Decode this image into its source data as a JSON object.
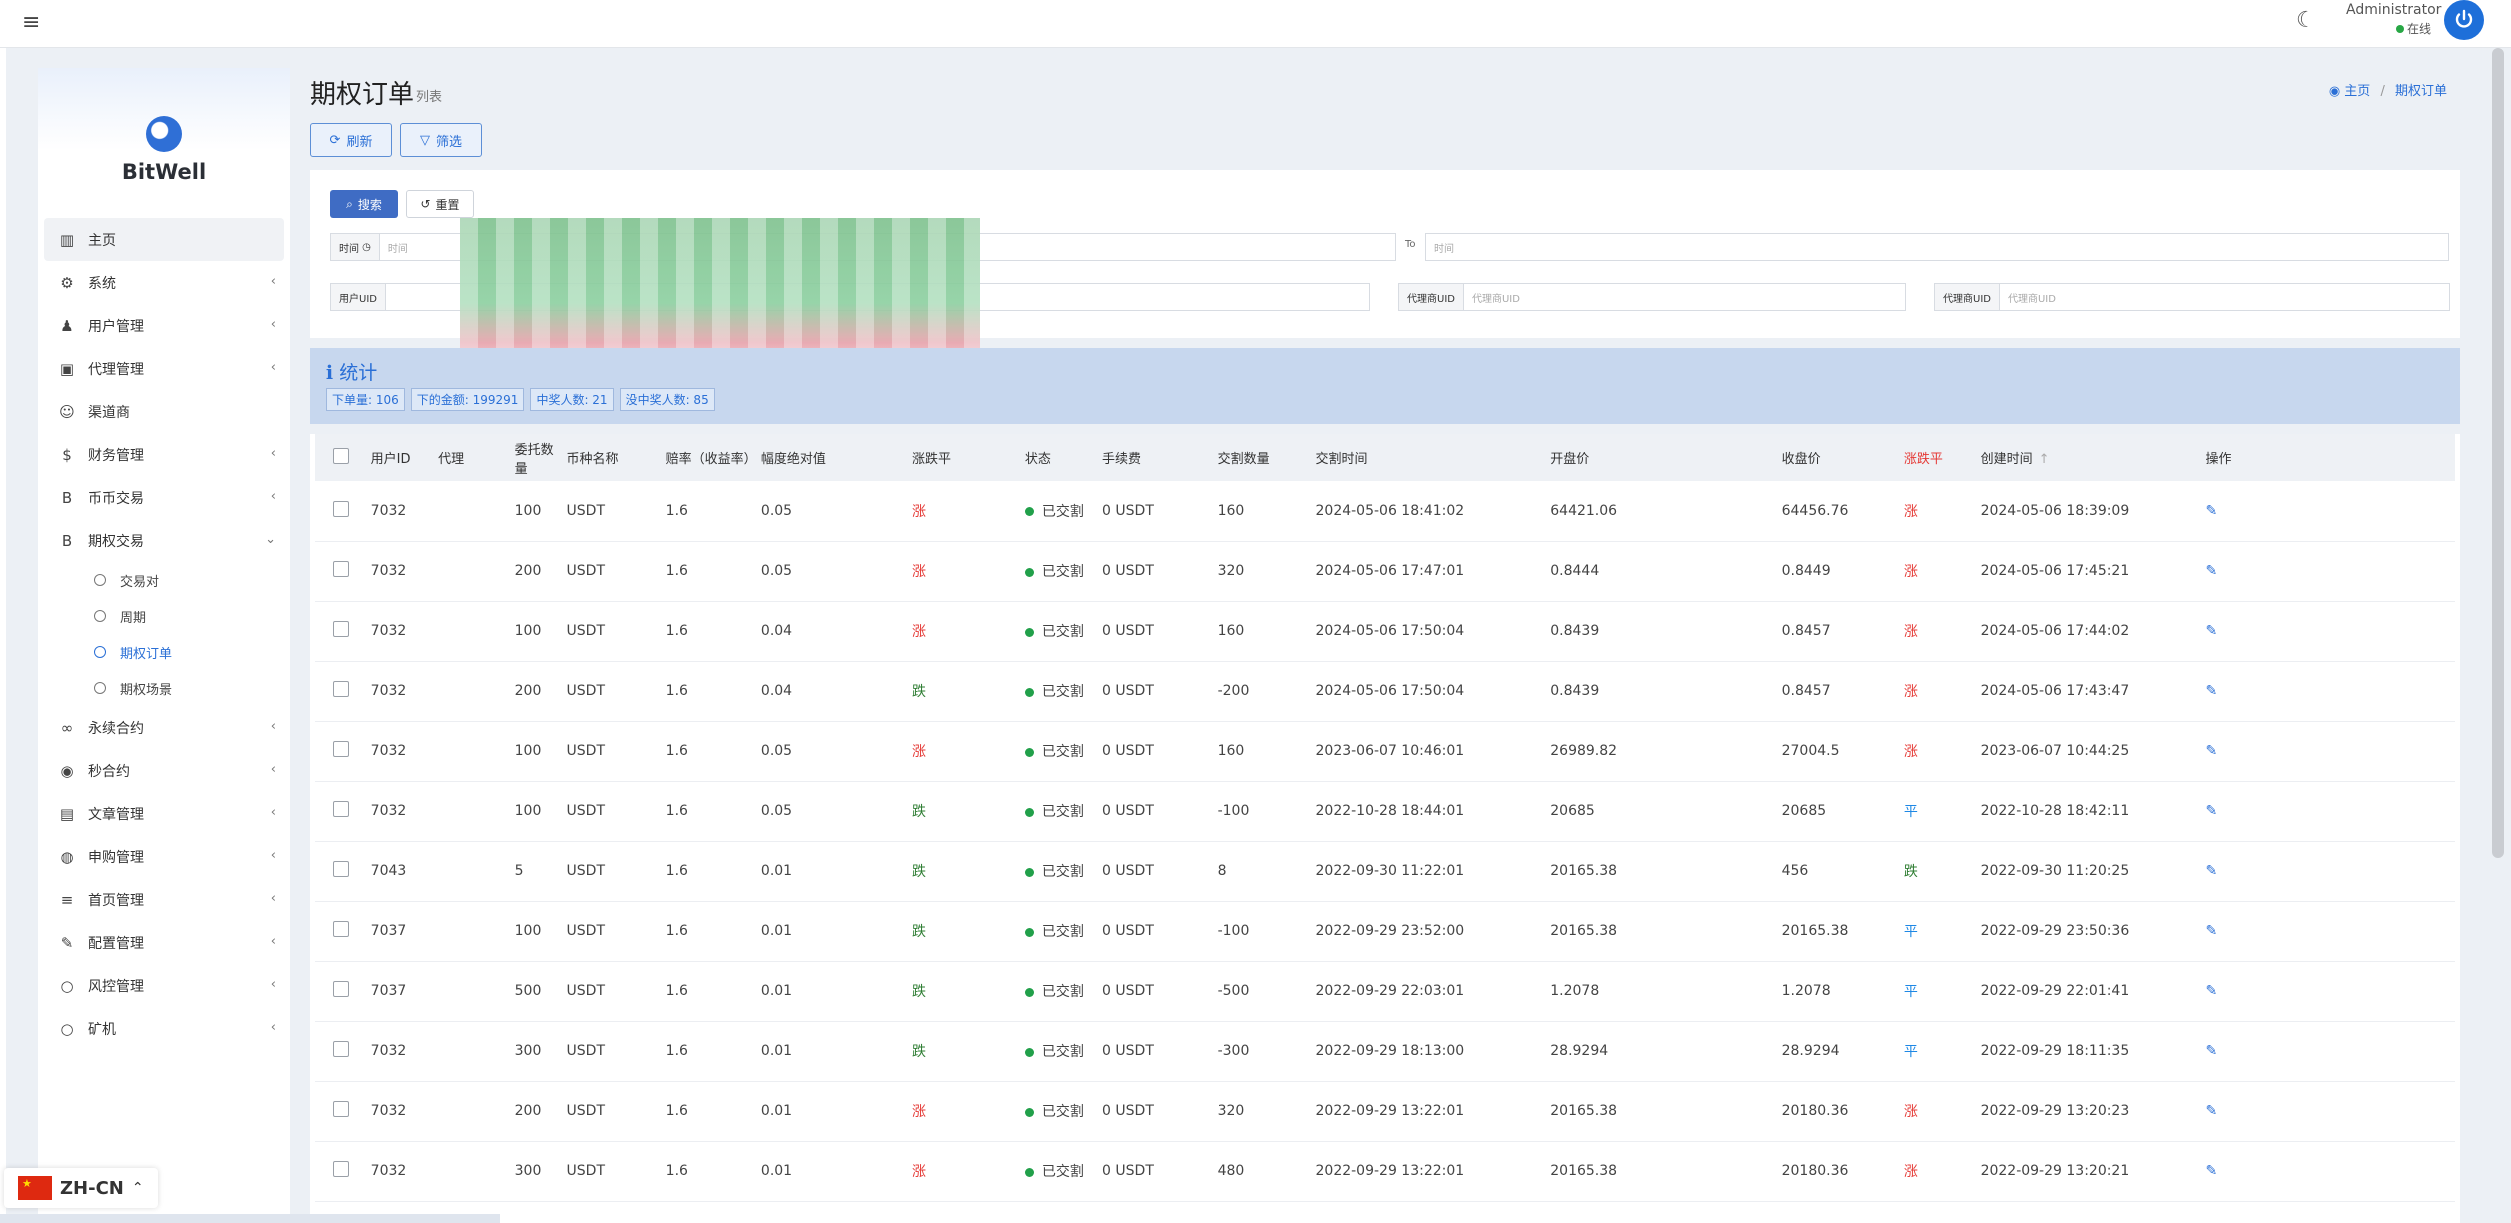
{
  "header": {
    "admin_name": "Administrator",
    "admin_status": "在线"
  },
  "brand": {
    "name": "BitWell"
  },
  "sidebar": {
    "items": [
      {
        "label": "主页",
        "icon": "chart-bar-icon",
        "has_children": false
      },
      {
        "label": "系统",
        "icon": "gear-icon",
        "has_children": true
      },
      {
        "label": "用户管理",
        "icon": "user-icon",
        "has_children": true
      },
      {
        "label": "代理管理",
        "icon": "id-card-icon",
        "has_children": true
      },
      {
        "label": "渠道商",
        "icon": "user-circle-icon",
        "has_children": false
      },
      {
        "label": "财务管理",
        "icon": "dollar-icon",
        "has_children": true
      },
      {
        "label": "币币交易",
        "icon": "bitcoin-icon",
        "has_children": true
      },
      {
        "label": "期权交易",
        "icon": "bitcoin-icon",
        "has_children": true,
        "expanded": true
      }
    ],
    "submenu": [
      {
        "label": "交易对"
      },
      {
        "label": "周期"
      },
      {
        "label": "期权订单",
        "active": true
      },
      {
        "label": "期权场景"
      }
    ],
    "items_after": [
      {
        "label": "永续合约",
        "icon": "link-icon",
        "has_children": true
      },
      {
        "label": "秒合约",
        "icon": "dot-circle-icon",
        "has_children": true
      },
      {
        "label": "文章管理",
        "icon": "newspaper-icon",
        "has_children": true
      },
      {
        "label": "申购管理",
        "icon": "globe-icon",
        "has_children": true
      },
      {
        "label": "首页管理",
        "icon": "list-icon",
        "has_children": true
      },
      {
        "label": "配置管理",
        "icon": "wrench-icon",
        "has_children": true
      },
      {
        "label": "风控管理",
        "icon": "circle-icon",
        "has_children": true
      },
      {
        "label": "矿机",
        "icon": "circle-icon",
        "has_children": true
      }
    ]
  },
  "page": {
    "title": "期权订单",
    "subtitle": "列表",
    "breadcrumb": [
      "主页",
      "期权订单"
    ],
    "refresh_label": "刷新",
    "filter_label": "筛选"
  },
  "filters": {
    "search_label": "搜索",
    "reset_label": "重置",
    "time_label": "时间",
    "time_placeholder": "时间",
    "to_label": "To",
    "to_placeholder": "时间",
    "field2_label": "用户UID",
    "agent_uid_label": "代理商UID",
    "agent_uid_placeholder": "代理商UID",
    "agent_uid2_label": "代理商UID",
    "agent_uid2_placeholder": "代理商UID"
  },
  "stats": {
    "title": "统计",
    "tags": [
      "下单量: 106",
      "下的金额: 199291",
      "中奖人数: 21",
      "没中奖人数: 85"
    ]
  },
  "table": {
    "columns": [
      "用户ID",
      "代理",
      "委托数量",
      "币种名称",
      "赔率（收益率）",
      "幅度绝对值",
      "涨跌平",
      "状态",
      "手续费",
      "交割数量",
      "交割时间",
      "开盘价",
      "收盘价",
      "涨跌平",
      "创建时间",
      "操作"
    ],
    "rows": [
      {
        "uid": "7032",
        "agent": "",
        "qty": "100",
        "coin": "USDT",
        "odds": "1.6",
        "range": "0.05",
        "dir": "涨",
        "dir_type": "up",
        "status": "已交割",
        "fee": "0 USDT",
        "settle_qty": "160",
        "settle_time": "2024-05-06 18:41:02",
        "open": "64421.06",
        "close": "64456.76",
        "result": "涨",
        "result_type": "up",
        "created": "2024-05-06 18:39:09"
      },
      {
        "uid": "7032",
        "agent": "",
        "qty": "200",
        "coin": "USDT",
        "odds": "1.6",
        "range": "0.05",
        "dir": "涨",
        "dir_type": "up",
        "status": "已交割",
        "fee": "0 USDT",
        "settle_qty": "320",
        "settle_time": "2024-05-06 17:47:01",
        "open": "0.8444",
        "close": "0.8449",
        "result": "涨",
        "result_type": "up",
        "created": "2024-05-06 17:45:21"
      },
      {
        "uid": "7032",
        "agent": "",
        "qty": "100",
        "coin": "USDT",
        "odds": "1.6",
        "range": "0.04",
        "dir": "涨",
        "dir_type": "up",
        "status": "已交割",
        "fee": "0 USDT",
        "settle_qty": "160",
        "settle_time": "2024-05-06 17:50:04",
        "open": "0.8439",
        "close": "0.8457",
        "result": "涨",
        "result_type": "up",
        "created": "2024-05-06 17:44:02"
      },
      {
        "uid": "7032",
        "agent": "",
        "qty": "200",
        "coin": "USDT",
        "odds": "1.6",
        "range": "0.04",
        "dir": "跌",
        "dir_type": "down",
        "status": "已交割",
        "fee": "0 USDT",
        "settle_qty": "-200",
        "settle_time": "2024-05-06 17:50:04",
        "open": "0.8439",
        "close": "0.8457",
        "result": "涨",
        "result_type": "up",
        "created": "2024-05-06 17:43:47"
      },
      {
        "uid": "7032",
        "agent": "",
        "qty": "100",
        "coin": "USDT",
        "odds": "1.6",
        "range": "0.05",
        "dir": "涨",
        "dir_type": "up",
        "status": "已交割",
        "fee": "0 USDT",
        "settle_qty": "160",
        "settle_time": "2023-06-07 10:46:01",
        "open": "26989.82",
        "close": "27004.5",
        "result": "涨",
        "result_type": "up",
        "created": "2023-06-07 10:44:25"
      },
      {
        "uid": "7032",
        "agent": "",
        "qty": "100",
        "coin": "USDT",
        "odds": "1.6",
        "range": "0.05",
        "dir": "跌",
        "dir_type": "down",
        "status": "已交割",
        "fee": "0 USDT",
        "settle_qty": "-100",
        "settle_time": "2022-10-28 18:44:01",
        "open": "20685",
        "close": "20685",
        "result": "平",
        "result_type": "flat",
        "created": "2022-10-28 18:42:11"
      },
      {
        "uid": "7043",
        "agent": "",
        "qty": "5",
        "coin": "USDT",
        "odds": "1.6",
        "range": "0.01",
        "dir": "跌",
        "dir_type": "down",
        "status": "已交割",
        "fee": "0 USDT",
        "settle_qty": "8",
        "settle_time": "2022-09-30 11:22:01",
        "open": "20165.38",
        "close": "456",
        "result": "跌",
        "result_type": "down",
        "created": "2022-09-30 11:20:25"
      },
      {
        "uid": "7037",
        "agent": "",
        "qty": "100",
        "coin": "USDT",
        "odds": "1.6",
        "range": "0.01",
        "dir": "跌",
        "dir_type": "down",
        "status": "已交割",
        "fee": "0 USDT",
        "settle_qty": "-100",
        "settle_time": "2022-09-29 23:52:00",
        "open": "20165.38",
        "close": "20165.38",
        "result": "平",
        "result_type": "flat",
        "created": "2022-09-29 23:50:36"
      },
      {
        "uid": "7037",
        "agent": "",
        "qty": "500",
        "coin": "USDT",
        "odds": "1.6",
        "range": "0.01",
        "dir": "跌",
        "dir_type": "down",
        "status": "已交割",
        "fee": "0 USDT",
        "settle_qty": "-500",
        "settle_time": "2022-09-29 22:03:01",
        "open": "1.2078",
        "close": "1.2078",
        "result": "平",
        "result_type": "flat",
        "created": "2022-09-29 22:01:41"
      },
      {
        "uid": "7032",
        "agent": "",
        "qty": "300",
        "coin": "USDT",
        "odds": "1.6",
        "range": "0.01",
        "dir": "跌",
        "dir_type": "down",
        "status": "已交割",
        "fee": "0 USDT",
        "settle_qty": "-300",
        "settle_time": "2022-09-29 18:13:00",
        "open": "28.9294",
        "close": "28.9294",
        "result": "平",
        "result_type": "flat",
        "created": "2022-09-29 18:11:35"
      },
      {
        "uid": "7032",
        "agent": "",
        "qty": "200",
        "coin": "USDT",
        "odds": "1.6",
        "range": "0.01",
        "dir": "涨",
        "dir_type": "up",
        "status": "已交割",
        "fee": "0 USDT",
        "settle_qty": "320",
        "settle_time": "2022-09-29 13:22:01",
        "open": "20165.38",
        "close": "20180.36",
        "result": "涨",
        "result_type": "up",
        "created": "2022-09-29 13:20:23"
      },
      {
        "uid": "7032",
        "agent": "",
        "qty": "300",
        "coin": "USDT",
        "odds": "1.6",
        "range": "0.01",
        "dir": "涨",
        "dir_type": "up",
        "status": "已交割",
        "fee": "0 USDT",
        "settle_qty": "480",
        "settle_time": "2022-09-29 13:22:01",
        "open": "20165.38",
        "close": "20180.36",
        "result": "涨",
        "result_type": "up",
        "created": "2022-09-29 13:20:21"
      }
    ]
  },
  "lang": {
    "code": "ZH-CN"
  },
  "colors": {
    "accent": "#2a6fd6",
    "up": "#e53935",
    "down": "#2e7d32",
    "flat": "#1e88e5",
    "status_ok": "#21a04a"
  }
}
